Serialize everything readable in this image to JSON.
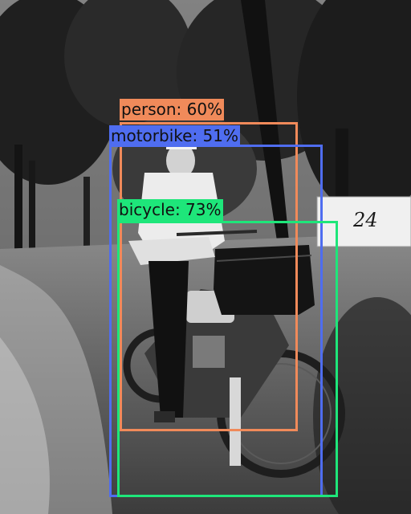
{
  "image": {
    "description": "Vintage black-and-white photograph of a man seated on an early motorcycle with a leather saddlebag on a wooded dirt path, with a numbered mailbox sign",
    "sign_text": "24"
  },
  "detections": [
    {
      "label": "person: 60%",
      "class": "person",
      "confidence": 0.6,
      "color": "#f08a5a"
    },
    {
      "label": "motorbike: 51%",
      "class": "motorbike",
      "confidence": 0.51,
      "color": "#4f6df0"
    },
    {
      "label": "bicycle: 73%",
      "class": "bicycle",
      "confidence": 0.73,
      "color": "#1ee67a"
    }
  ]
}
